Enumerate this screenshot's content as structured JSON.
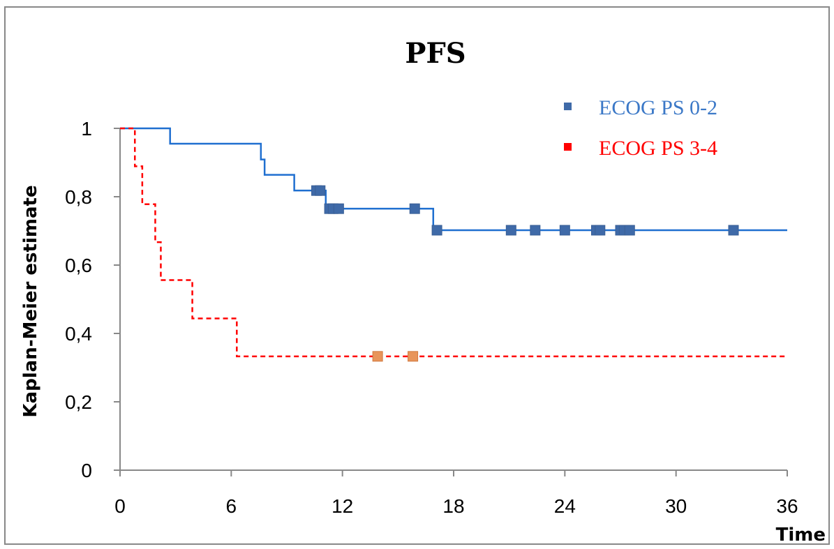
{
  "chart_data": {
    "type": "line",
    "subtype": "kaplan-meier step",
    "title": "PFS",
    "xlabel": "Time",
    "ylabel": "Kaplan-Meier estimate",
    "xlim": [
      0,
      36
    ],
    "ylim": [
      0,
      1
    ],
    "x_ticks": [
      "0",
      "6",
      "12",
      "18",
      "24",
      "30",
      "36"
    ],
    "y_ticks": [
      "0",
      "0,2",
      "0,4",
      "0,6",
      "0,8",
      "1"
    ],
    "x_tick_values": [
      0,
      6,
      12,
      18,
      24,
      30,
      36
    ],
    "y_tick_values": [
      0,
      0.2,
      0.4,
      0.6,
      0.8,
      1
    ],
    "grid": false,
    "legend_position": "top-right",
    "series": [
      {
        "name": "ECOG PS 0-2",
        "color": "#1f6fd0",
        "marker_color": "#3f6aa8",
        "line_style": "solid",
        "steps": [
          [
            0,
            1
          ],
          [
            2.7,
            0.955
          ],
          [
            7.6,
            0.909
          ],
          [
            7.8,
            0.864
          ],
          [
            9.4,
            0.818
          ],
          [
            11.1,
            0.765
          ],
          [
            16.9,
            0.702
          ],
          [
            36,
            0.702
          ]
        ],
        "censored": [
          [
            10.6,
            0.818
          ],
          [
            10.8,
            0.818
          ],
          [
            11.3,
            0.765
          ],
          [
            11.5,
            0.765
          ],
          [
            11.8,
            0.765
          ],
          [
            15.9,
            0.765
          ],
          [
            17.1,
            0.702
          ],
          [
            21.1,
            0.702
          ],
          [
            22.4,
            0.702
          ],
          [
            24.0,
            0.702
          ],
          [
            25.7,
            0.702
          ],
          [
            25.9,
            0.702
          ],
          [
            27.0,
            0.702
          ],
          [
            27.2,
            0.702
          ],
          [
            27.5,
            0.702
          ],
          [
            33.1,
            0.702
          ]
        ]
      },
      {
        "name": "ECOG PS 3-4",
        "color": "#ff0000",
        "marker_color": "#e8955a",
        "line_style": "dashed",
        "steps": [
          [
            0,
            1
          ],
          [
            0.8,
            0.889
          ],
          [
            1.2,
            0.778
          ],
          [
            1.9,
            0.667
          ],
          [
            2.2,
            0.556
          ],
          [
            3.9,
            0.444
          ],
          [
            6.3,
            0.333
          ],
          [
            36,
            0.333
          ]
        ],
        "censored": [
          [
            13.9,
            0.333
          ],
          [
            15.8,
            0.333
          ]
        ]
      }
    ]
  }
}
